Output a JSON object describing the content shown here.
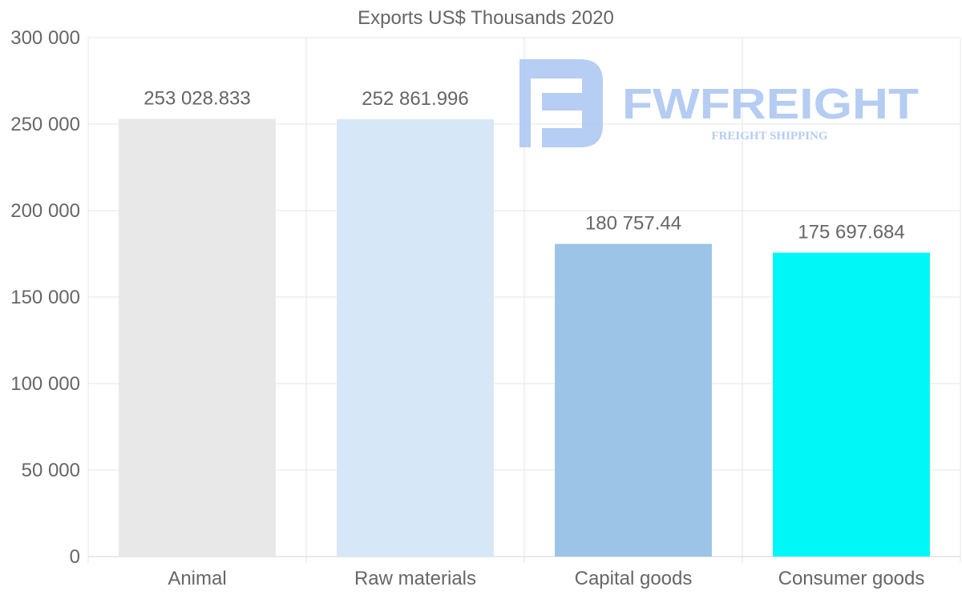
{
  "chart_data": {
    "type": "bar",
    "title": "Exports US$ Thousands 2020",
    "xlabel": "",
    "ylabel": "",
    "categories": [
      "Animal",
      "Raw materials",
      "Capital goods",
      "Consumer goods"
    ],
    "values": [
      253028.833,
      252861.996,
      180757.44,
      175697.684
    ],
    "value_labels": [
      "253 028.833",
      "252 861.996",
      "180 757.44",
      "175 697.684"
    ],
    "bar_colors": [
      "#e8e8e8",
      "#d6e7f8",
      "#9bc4e6",
      "#00f7f7"
    ],
    "ylim": [
      0,
      300000
    ],
    "y_ticks": [
      0,
      50000,
      100000,
      150000,
      200000,
      250000,
      300000
    ],
    "y_tick_labels": [
      "0",
      "50 000",
      "100 000",
      "150 000",
      "200 000",
      "250 000",
      "300 000"
    ],
    "grid": true,
    "legend": "none"
  },
  "watermark": {
    "brand": "FWFREIGHT",
    "tagline": "FREIGHT SHIPPING",
    "color": "#a9c4f2"
  }
}
